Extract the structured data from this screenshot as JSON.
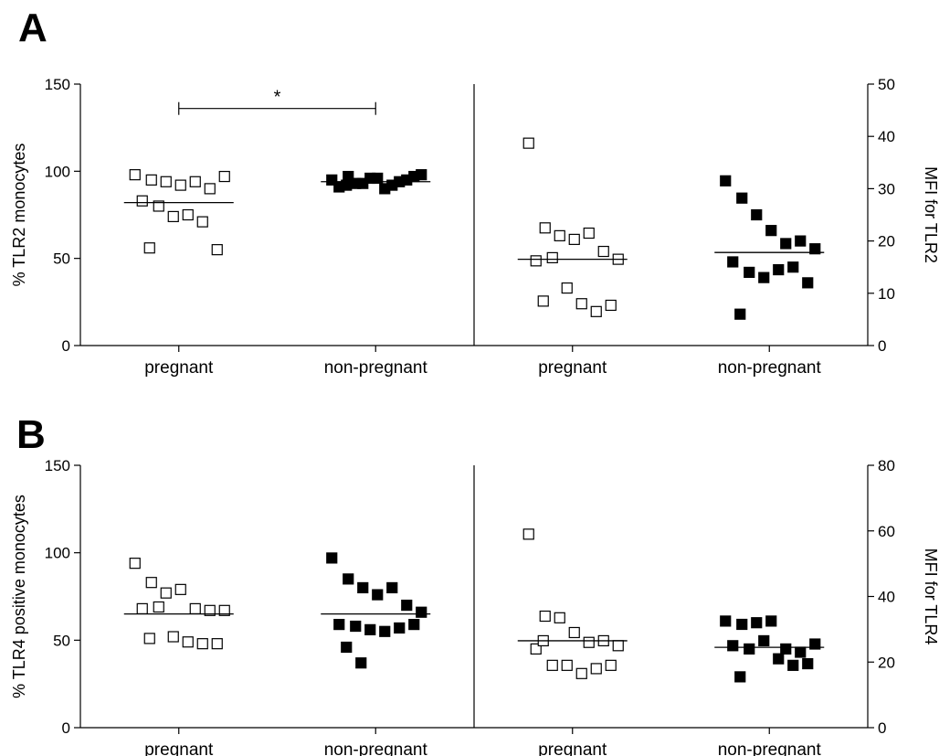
{
  "panels": {
    "A": {
      "letter": "A",
      "significance": "*"
    },
    "B": {
      "letter": "B"
    }
  },
  "chart_data": [
    {
      "type": "scatter",
      "panel": "A",
      "side": "left",
      "ylabel": "% TLR2 monocytes",
      "ylim": [
        0,
        150
      ],
      "yticks": [
        0,
        50,
        100,
        150
      ],
      "categories": [
        "pregnant",
        "non-pregnant"
      ],
      "series": [
        {
          "group": "pregnant",
          "marker": "open-square",
          "median": 82,
          "values": [
            98,
            95,
            94,
            92,
            94,
            90,
            97,
            83,
            80,
            74,
            75,
            71,
            55,
            56
          ]
        },
        {
          "group": "non-pregnant",
          "marker": "filled-square",
          "median": 94,
          "values": [
            95,
            97,
            93,
            96,
            92,
            95,
            98,
            91,
            93,
            96,
            90,
            94,
            97,
            92
          ]
        }
      ],
      "significance": {
        "between": [
          "pregnant",
          "non-pregnant"
        ],
        "y": 136,
        "label": "*"
      }
    },
    {
      "type": "scatter",
      "panel": "A",
      "side": "right",
      "ylabel": "MFI for TLR2",
      "ylim": [
        0,
        50
      ],
      "yticks": [
        0,
        10,
        20,
        30,
        40,
        50
      ],
      "categories": [
        "pregnant",
        "non-pregnant"
      ],
      "series": [
        {
          "group": "pregnant",
          "marker": "open-square",
          "median": 16.5,
          "values": [
            38.7,
            22.5,
            21.0,
            20.3,
            21.5,
            18.0,
            16.5,
            16.2,
            16.8,
            11.0,
            8.0,
            6.5,
            7.7,
            8.5
          ]
        },
        {
          "group": "non-pregnant",
          "marker": "filled-square",
          "median": 17.8,
          "values": [
            31.5,
            28.2,
            25.0,
            22.0,
            19.5,
            20.0,
            18.5,
            16.0,
            14.0,
            13.0,
            14.5,
            15.0,
            12.0,
            6.0
          ]
        }
      ]
    },
    {
      "type": "scatter",
      "panel": "B",
      "side": "left",
      "ylabel": "% TLR4 positive monocytes",
      "ylim": [
        0,
        150
      ],
      "yticks": [
        0,
        50,
        100,
        150
      ],
      "categories": [
        "pregnant",
        "non-pregnant"
      ],
      "series": [
        {
          "group": "pregnant",
          "marker": "open-square",
          "median": 65,
          "values": [
            94,
            83,
            77,
            79,
            68,
            67,
            67,
            68,
            69,
            52,
            49,
            48,
            48,
            51
          ]
        },
        {
          "group": "non-pregnant",
          "marker": "filled-square",
          "median": 65,
          "values": [
            97,
            85,
            80,
            76,
            80,
            70,
            66,
            59,
            58,
            56,
            55,
            57,
            59,
            46,
            37
          ]
        }
      ]
    },
    {
      "type": "scatter",
      "panel": "B",
      "side": "right",
      "ylabel": "MFI for TLR4",
      "ylim": [
        0,
        80
      ],
      "yticks": [
        0,
        20,
        40,
        60,
        80
      ],
      "categories": [
        "pregnant",
        "non-pregnant"
      ],
      "series": [
        {
          "group": "pregnant",
          "marker": "open-square",
          "median": 26.5,
          "values": [
            59.0,
            34.0,
            33.5,
            29.0,
            26.0,
            26.5,
            25.0,
            24.0,
            19.0,
            19.0,
            16.5,
            18.0,
            19.0,
            26.5
          ]
        },
        {
          "group": "non-pregnant",
          "marker": "filled-square",
          "median": 24.5,
          "values": [
            32.5,
            31.5,
            32.0,
            32.5,
            24.0,
            23.0,
            25.5,
            25.0,
            24.0,
            26.5,
            21.0,
            19.0,
            19.5,
            15.5
          ]
        }
      ]
    }
  ]
}
